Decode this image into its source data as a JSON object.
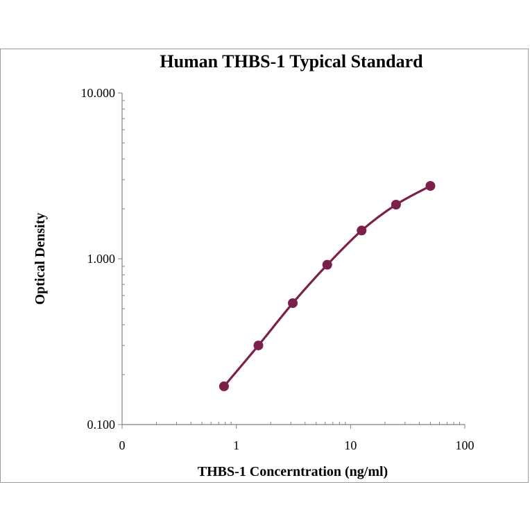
{
  "chart_data": {
    "type": "line",
    "title": "Human THBS-1 Typical Standard",
    "xlabel": "THBS-1 Concerntration (ng/ml)",
    "ylabel": "Optical Density",
    "x_scale": "log",
    "y_scale": "log",
    "x_ticks": [
      "0",
      "1",
      "10",
      "100"
    ],
    "y_ticks": [
      "10.000",
      "1.000",
      "0.100"
    ],
    "ylim": [
      0.1,
      10
    ],
    "xlim": [
      0.1,
      100
    ],
    "grid": false,
    "series": [
      {
        "color": "#7b1f4b",
        "x": [
          0.78,
          1.56,
          3.12,
          6.25,
          12.5,
          25,
          50
        ],
        "y": [
          0.17,
          0.3,
          0.54,
          0.92,
          1.48,
          2.12,
          2.75
        ]
      }
    ]
  }
}
